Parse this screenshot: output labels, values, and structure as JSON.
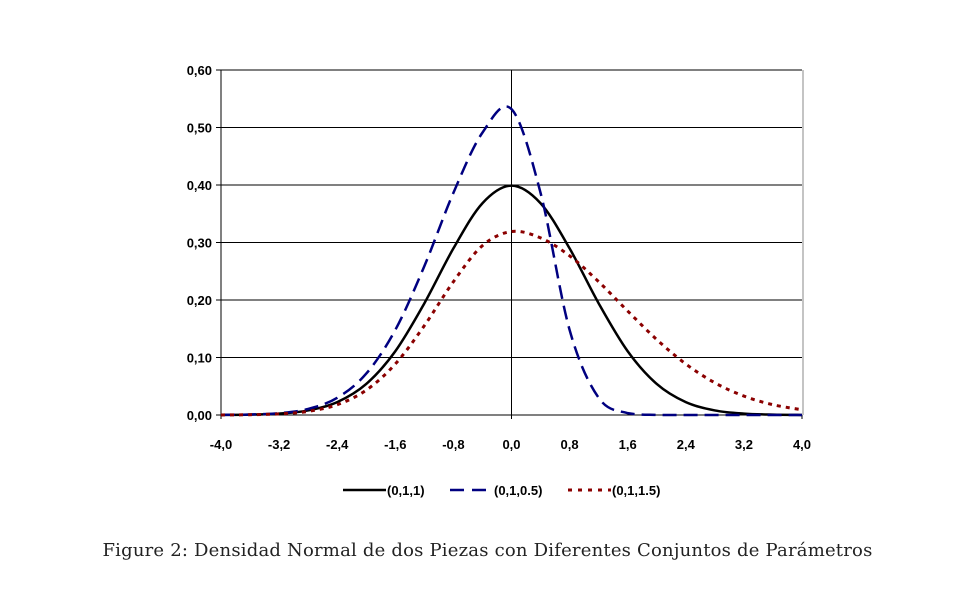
{
  "chart_data": {
    "type": "line",
    "title": "",
    "xlabel": "",
    "ylabel": "",
    "xlim": [
      -4.0,
      4.0
    ],
    "ylim": [
      0.0,
      0.6
    ],
    "grid": "horizontal",
    "legend_position": "bottom",
    "x_ticks": [
      "-4,0",
      "-3,2",
      "-2,4",
      "-1,6",
      "-0,8",
      "0,0",
      "0,8",
      "1,6",
      "2,4",
      "3,2",
      "4,0"
    ],
    "x_tick_values": [
      -4.0,
      -3.2,
      -2.4,
      -1.6,
      -0.8,
      0.0,
      0.8,
      1.6,
      2.4,
      3.2,
      4.0
    ],
    "y_ticks": [
      "0,00",
      "0,10",
      "0,20",
      "0,30",
      "0,40",
      "0,50",
      "0,60"
    ],
    "y_tick_values": [
      0,
      0.1,
      0.2,
      0.3,
      0.4,
      0.5,
      0.6
    ],
    "x": [
      -4.0,
      -3.6,
      -3.2,
      -2.8,
      -2.4,
      -2.0,
      -1.6,
      -1.2,
      -0.8,
      -0.4,
      0.0,
      0.4,
      0.8,
      1.2,
      1.6,
      2.0,
      2.4,
      2.8,
      3.2,
      3.6,
      4.0
    ],
    "series": [
      {
        "name": "(0,1,1)",
        "color": "#000000",
        "style": "solid",
        "values": [
          0.0001,
          0.0006,
          0.0024,
          0.0079,
          0.0224,
          0.054,
          0.1109,
          0.1942,
          0.2897,
          0.3683,
          0.3989,
          0.3683,
          0.2897,
          0.1942,
          0.1109,
          0.054,
          0.0224,
          0.0079,
          0.0024,
          0.0006,
          0.0001
        ]
      },
      {
        "name": "(0,1,0.5)",
        "color": "#000080",
        "style": "dashed",
        "values": [
          0.0002,
          0.0008,
          0.0032,
          0.0105,
          0.0299,
          0.072,
          0.1479,
          0.2589,
          0.3863,
          0.4911,
          0.5319,
          0.3863,
          0.1479,
          0.0299,
          0.0032,
          0.0002,
          0.0,
          0.0,
          0.0,
          0.0,
          0.0
        ]
      },
      {
        "name": "(0,1,1.5)",
        "color": "#8B0000",
        "style": "dotted",
        "values": [
          0.0001,
          0.0005,
          0.0019,
          0.0063,
          0.0179,
          0.0432,
          0.0887,
          0.1554,
          0.2318,
          0.2946,
          0.3191,
          0.308,
          0.2769,
          0.2318,
          0.1808,
          0.1312,
          0.0887,
          0.056,
          0.0329,
          0.0179,
          0.0091
        ]
      }
    ]
  },
  "caption": "Figure 2: Densidad Normal de dos Piezas con Diferentes Conjuntos de Parámetros"
}
